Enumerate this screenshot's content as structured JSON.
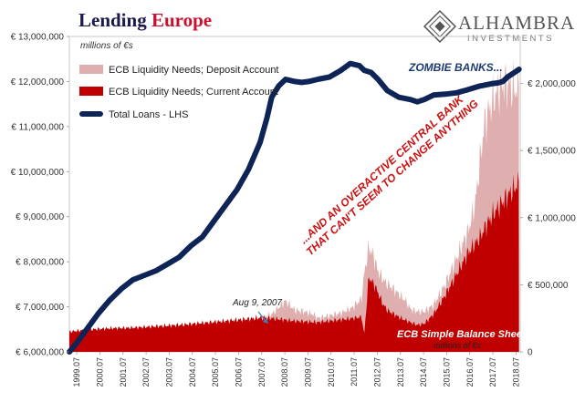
{
  "title": {
    "part1": "Lending ",
    "part2": "Europe"
  },
  "brand": {
    "name": "ALHAMBRA",
    "sub": "INVESTMENTS"
  },
  "colors": {
    "loans": "#0f2456",
    "deposit": "#dfaeae",
    "current": "#c00000",
    "annotation": "#cc1111",
    "zombie": "#1f3b73"
  },
  "chart_data": {
    "type": "area",
    "units_label": "millions of €s",
    "units_label_right": "millions of €s",
    "x_tick_labels": [
      "1999.07",
      "2000.07",
      "2001.07",
      "2002.07",
      "2003.07",
      "2004.07",
      "2005.07",
      "2006.07",
      "2007.07",
      "2008.07",
      "2009.07",
      "2010.07",
      "2011.07",
      "2012.07",
      "2013.07",
      "2014.07",
      "2015.07",
      "2016.07",
      "2017.07",
      "2018.07"
    ],
    "x_range": [
      1999.25,
      2018.75
    ],
    "y_left": {
      "ticks": [
        "€ 6,000,000",
        "€ 7,000,000",
        "€ 8,000,000",
        "€ 9,000,000",
        "€ 10,000,000",
        "€ 11,000,000",
        "€ 12,000,000",
        "€ 13,000,000"
      ],
      "range": [
        6000000,
        13000000
      ]
    },
    "y_right": {
      "ticks": [
        "0",
        "€ 500,000",
        "€ 1,000,000",
        "€ 1,500,000",
        "€ 2,000,000"
      ],
      "range": [
        0,
        2350000
      ]
    },
    "legend": {
      "placement": "top-left",
      "items": [
        {
          "label": "ECB Liquidity Needs; Deposit Account",
          "key": "deposit"
        },
        {
          "label": "ECB Liquidity Needs; Current Account",
          "key": "current"
        },
        {
          "label": "Total Loans - LHS",
          "key": "loans"
        }
      ]
    },
    "series": [
      {
        "name": "Total Loans - LHS",
        "axis": "left",
        "x": [
          1999.25,
          1999.5,
          2000.0,
          2000.5,
          2001.0,
          2001.5,
          2002.0,
          2002.5,
          2003.0,
          2003.5,
          2004.0,
          2004.5,
          2005.0,
          2005.5,
          2006.0,
          2006.5,
          2007.0,
          2007.5,
          2007.8,
          2008.0,
          2008.3,
          2008.6,
          2009.0,
          2009.3,
          2009.6,
          2010.0,
          2010.5,
          2011.0,
          2011.4,
          2011.8,
          2012.0,
          2012.3,
          2012.6,
          2013.0,
          2013.5,
          2014.0,
          2014.3,
          2014.6,
          2015.0,
          2015.5,
          2016.0,
          2016.5,
          2017.0,
          2017.5,
          2017.8,
          2018.0,
          2018.2,
          2018.5,
          2018.7
        ],
        "values": [
          6000000,
          6150000,
          6500000,
          6850000,
          7150000,
          7400000,
          7600000,
          7700000,
          7800000,
          7950000,
          8100000,
          8350000,
          8550000,
          8900000,
          9250000,
          9600000,
          10050000,
          10650000,
          11200000,
          11650000,
          11900000,
          12050000,
          12000000,
          11980000,
          12000000,
          12050000,
          12100000,
          12250000,
          12400000,
          12350000,
          12250000,
          12200000,
          12050000,
          11800000,
          11650000,
          11600000,
          11550000,
          11600000,
          11700000,
          11720000,
          11750000,
          11820000,
          11900000,
          11950000,
          11970000,
          12000000,
          12100000,
          12200000,
          12270000
        ]
      },
      {
        "name": "ECB Liquidity Needs; Deposit Account",
        "axis": "right",
        "x": [
          1999.25,
          2000.0,
          2001.0,
          2002.0,
          2003.0,
          2004.0,
          2005.0,
          2006.0,
          2007.0,
          2007.6,
          2008.0,
          2008.3,
          2008.6,
          2009.0,
          2009.4,
          2009.8,
          2010.0,
          2010.5,
          2011.0,
          2011.5,
          2011.9,
          2012.0,
          2012.2,
          2012.4,
          2012.6,
          2012.9,
          2013.2,
          2013.5,
          2013.8,
          2014.0,
          2014.3,
          2014.6,
          2015.0,
          2015.5,
          2016.0,
          2016.5,
          2016.8,
          2017.0,
          2017.2,
          2017.5,
          2017.8,
          2018.0,
          2018.3,
          2018.7
        ],
        "values": [
          150000,
          165000,
          175000,
          180000,
          190000,
          200000,
          215000,
          230000,
          245000,
          260000,
          280000,
          330000,
          380000,
          310000,
          300000,
          280000,
          250000,
          270000,
          290000,
          330000,
          400000,
          580000,
          780000,
          720000,
          600000,
          520000,
          480000,
          430000,
          380000,
          320000,
          300000,
          300000,
          350000,
          500000,
          700000,
          900000,
          1100000,
          1400000,
          1700000,
          1850000,
          1950000,
          2000000,
          1980000,
          1950000
        ]
      },
      {
        "name": "ECB Liquidity Needs; Current Account",
        "axis": "right",
        "x": [
          1999.25,
          2000.0,
          2001.0,
          2002.0,
          2003.0,
          2004.0,
          2005.0,
          2006.0,
          2007.0,
          2007.6,
          2008.0,
          2008.5,
          2009.0,
          2009.5,
          2010.0,
          2010.5,
          2011.0,
          2011.5,
          2011.9,
          2012.0,
          2012.2,
          2012.5,
          2012.8,
          2013.0,
          2013.3,
          2013.6,
          2014.0,
          2014.3,
          2014.6,
          2015.0,
          2015.5,
          2016.0,
          2016.5,
          2017.0,
          2017.3,
          2017.6,
          2018.0,
          2018.3,
          2018.7
        ],
        "values": [
          150000,
          165000,
          175000,
          180000,
          190000,
          200000,
          215000,
          230000,
          245000,
          255000,
          250000,
          240000,
          230000,
          225000,
          220000,
          230000,
          240000,
          250000,
          260000,
          120000,
          560000,
          480000,
          360000,
          310000,
          280000,
          250000,
          220000,
          200000,
          210000,
          280000,
          420000,
          580000,
          740000,
          850000,
          950000,
          1030000,
          1120000,
          1180000,
          1260000
        ]
      }
    ],
    "annotations": {
      "zombie": "ZOMBIE BANKS...",
      "central_bank_line1": "...AND AN OVERACTIVE CENTRAL BANK",
      "central_bank_line2": "THAT CAN'T SEEM TO CHANGE ANYTHING",
      "aug": "Aug 9, 2007",
      "balance": "ECB Simple Balance Sheet"
    }
  }
}
